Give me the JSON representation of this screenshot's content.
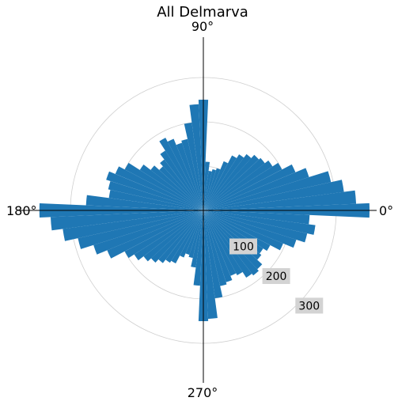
{
  "chart_data": {
    "type": "polar_bar",
    "title": "All Delmarva",
    "direction_labels": {
      "east": "0°",
      "north": "90°",
      "west": "180°",
      "south": "270°"
    },
    "radial_ticks": [
      {
        "value": 100,
        "label": "100"
      },
      {
        "value": 200,
        "label": "200"
      },
      {
        "value": 300,
        "label": "300"
      }
    ],
    "rmax": 375,
    "bin_width_deg": 5,
    "bin_start_deg": -2.5,
    "bins_deg": [
      0,
      5,
      10,
      15,
      20,
      25,
      30,
      35,
      40,
      45,
      50,
      55,
      60,
      65,
      70,
      75,
      80,
      85,
      90,
      95,
      100,
      105,
      110,
      115,
      120,
      125,
      130,
      135,
      140,
      145,
      150,
      155,
      160,
      165,
      170,
      175,
      180,
      185,
      190,
      195,
      200,
      205,
      210,
      215,
      220,
      225,
      230,
      235,
      240,
      245,
      250,
      255,
      260,
      265,
      270,
      275,
      280,
      285,
      290,
      295,
      300,
      305,
      310,
      315,
      320,
      325,
      330,
      335,
      340,
      345,
      350,
      355
    ],
    "values": [
      375,
      345,
      320,
      295,
      250,
      225,
      200,
      185,
      175,
      170,
      160,
      150,
      140,
      120,
      100,
      95,
      90,
      110,
      250,
      240,
      200,
      165,
      160,
      175,
      185,
      160,
      145,
      135,
      150,
      170,
      200,
      215,
      230,
      220,
      215,
      265,
      370,
      345,
      320,
      290,
      260,
      235,
      200,
      185,
      170,
      160,
      150,
      140,
      135,
      115,
      105,
      110,
      130,
      170,
      250,
      245,
      200,
      175,
      170,
      160,
      165,
      180,
      185,
      180,
      165,
      160,
      170,
      195,
      220,
      240,
      255,
      240
    ]
  }
}
